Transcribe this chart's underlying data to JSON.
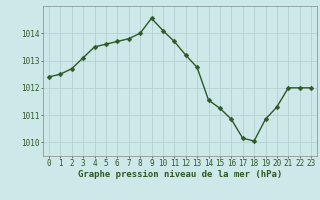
{
  "x": [
    0,
    1,
    2,
    3,
    4,
    5,
    6,
    7,
    8,
    9,
    10,
    11,
    12,
    13,
    14,
    15,
    16,
    17,
    18,
    19,
    20,
    21,
    22,
    23
  ],
  "y": [
    1012.4,
    1012.5,
    1012.7,
    1013.1,
    1013.5,
    1013.6,
    1013.7,
    1013.8,
    1014.0,
    1014.55,
    1014.1,
    1013.7,
    1013.2,
    1012.75,
    1011.55,
    1011.25,
    1010.85,
    1010.15,
    1010.05,
    1010.85,
    1011.3,
    1012.0,
    1012.0,
    1012.0
  ],
  "line_color": "#2d5a27",
  "marker_color": "#2d5a27",
  "bg_color": "#cde8e8",
  "grid_color": "#b0cccc",
  "xlabel": "Graphe pression niveau de la mer (hPa)",
  "ylim": [
    1009.5,
    1015.0
  ],
  "xlim": [
    -0.5,
    23.5
  ],
  "yticks": [
    1010,
    1011,
    1012,
    1013,
    1014
  ],
  "xticks": [
    0,
    1,
    2,
    3,
    4,
    5,
    6,
    7,
    8,
    9,
    10,
    11,
    12,
    13,
    14,
    15,
    16,
    17,
    18,
    19,
    20,
    21,
    22,
    23
  ],
  "tick_fontsize": 5.5,
  "xlabel_fontsize": 6.5,
  "marker_size": 2.5,
  "line_width": 1.0
}
